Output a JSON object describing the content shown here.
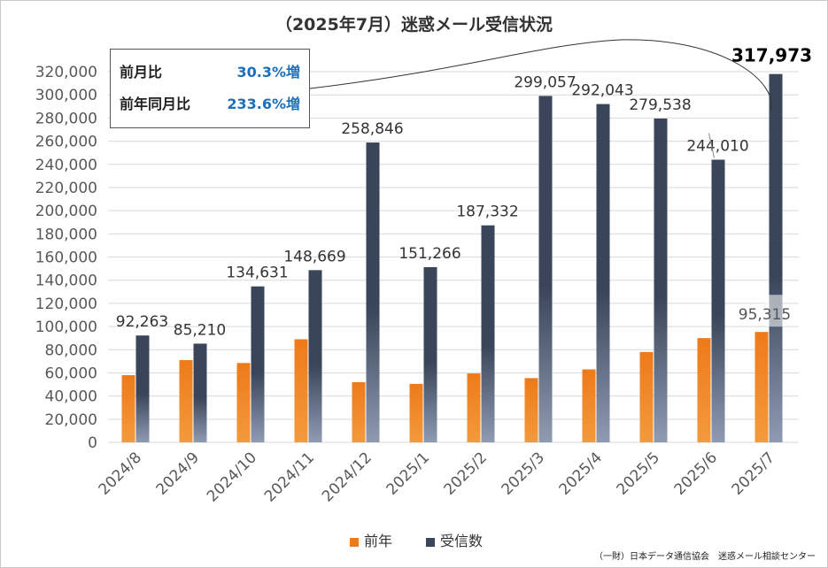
{
  "title": "（2025年7月）迷惑メール受信状況",
  "colors": {
    "prev_year": "#ee7a1a",
    "received": "#3a4559",
    "accent_text": "#1d6fb8",
    "grid": "#d9d9d9",
    "axis_text": "#595959"
  },
  "callout": {
    "rows": [
      {
        "label": "前月比",
        "value": "30.3%増"
      },
      {
        "label": "前年同月比",
        "value": "233.6%増"
      }
    ]
  },
  "legend": {
    "items": [
      {
        "label": "前年"
      },
      {
        "label": "受信数"
      }
    ]
  },
  "source": "（一財）日本データ通信協会　迷惑メール相談センター",
  "chart_data": {
    "type": "bar",
    "categories": [
      "2024/8",
      "2024/9",
      "2024/10",
      "2024/11",
      "2024/12",
      "2025/1",
      "2025/2",
      "2025/3",
      "2025/4",
      "2025/5",
      "2025/6",
      "2025/7"
    ],
    "series": [
      {
        "name": "前年",
        "values": [
          58000,
          71000,
          68500,
          89000,
          52000,
          50500,
          59500,
          55500,
          63000,
          78000,
          90000,
          95315
        ]
      },
      {
        "name": "受信数",
        "values": [
          92263,
          85210,
          134631,
          148669,
          258846,
          151266,
          187332,
          299057,
          292043,
          279538,
          244010,
          317973
        ]
      }
    ],
    "data_labels": {
      "received": [
        "92,263",
        "85,210",
        "134,631",
        "148,669",
        "258,846",
        "151,266",
        "187,332",
        "299,057",
        "292,043",
        "279,538",
        "244,010",
        "317,973"
      ],
      "prev_year_last": "95,315"
    },
    "yticks": [
      "0",
      "20,000",
      "40,000",
      "60,000",
      "80,000",
      "100,000",
      "120,000",
      "140,000",
      "160,000",
      "180,000",
      "200,000",
      "220,000",
      "240,000",
      "260,000",
      "280,000",
      "300,000",
      "320,000"
    ],
    "ylim": [
      0,
      320000
    ],
    "grid": true,
    "legend_position": "bottom"
  }
}
